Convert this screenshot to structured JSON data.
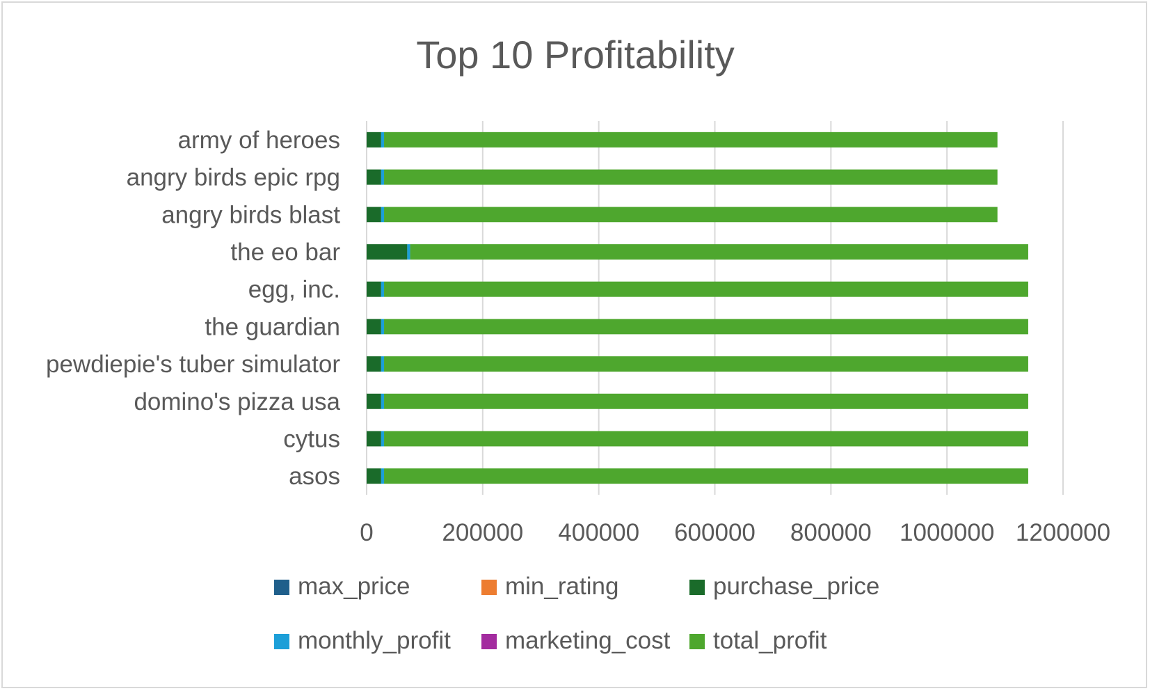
{
  "chart_data": {
    "type": "bar",
    "orientation": "horizontal",
    "stacked": true,
    "title": "Top 10 Profitability",
    "xlabel": "",
    "ylabel": "",
    "xlim": [
      0,
      1200000
    ],
    "x_ticks": [
      "0",
      "200000",
      "400000",
      "600000",
      "800000",
      "1000000",
      "1200000"
    ],
    "x_tick_values": [
      0,
      200000,
      400000,
      600000,
      800000,
      1000000,
      1200000
    ],
    "grid": "vertical",
    "legend_position": "bottom",
    "categories": [
      "army of heroes",
      "angry birds epic rpg",
      "angry birds blast",
      "the eo bar",
      "egg, inc.",
      "the guardian",
      "pewdiepie's tuber simulator",
      "domino's pizza usa",
      "cytus",
      "asos"
    ],
    "series": [
      {
        "name": "max_price",
        "color": "#1f5f8b",
        "values": [
          0,
          0,
          0,
          0,
          0,
          0,
          0,
          0,
          0,
          0
        ]
      },
      {
        "name": "min_rating",
        "color": "#ed7d31",
        "values": [
          4.5,
          4.5,
          4.5,
          4.5,
          4.5,
          4.5,
          4.5,
          4.5,
          4.5,
          4.5
        ]
      },
      {
        "name": "purchase_price",
        "color": "#1a6b2a",
        "values": [
          25000,
          25000,
          25000,
          70000,
          25000,
          25000,
          25000,
          25000,
          25000,
          25000
        ]
      },
      {
        "name": "monthly_profit",
        "color": "#1c9fd8",
        "values": [
          5000,
          5000,
          5000,
          5000,
          5000,
          5000,
          5000,
          5000,
          5000,
          5000
        ]
      },
      {
        "name": "marketing_cost",
        "color": "#a32c9f",
        "values": [
          0,
          0,
          0,
          0,
          0,
          0,
          0,
          0,
          0,
          0
        ]
      },
      {
        "name": "total_profit",
        "color": "#4ea72e",
        "values": [
          1057000,
          1057000,
          1057000,
          1065000,
          1110000,
          1110000,
          1110000,
          1110000,
          1110000,
          1110000
        ]
      }
    ]
  }
}
